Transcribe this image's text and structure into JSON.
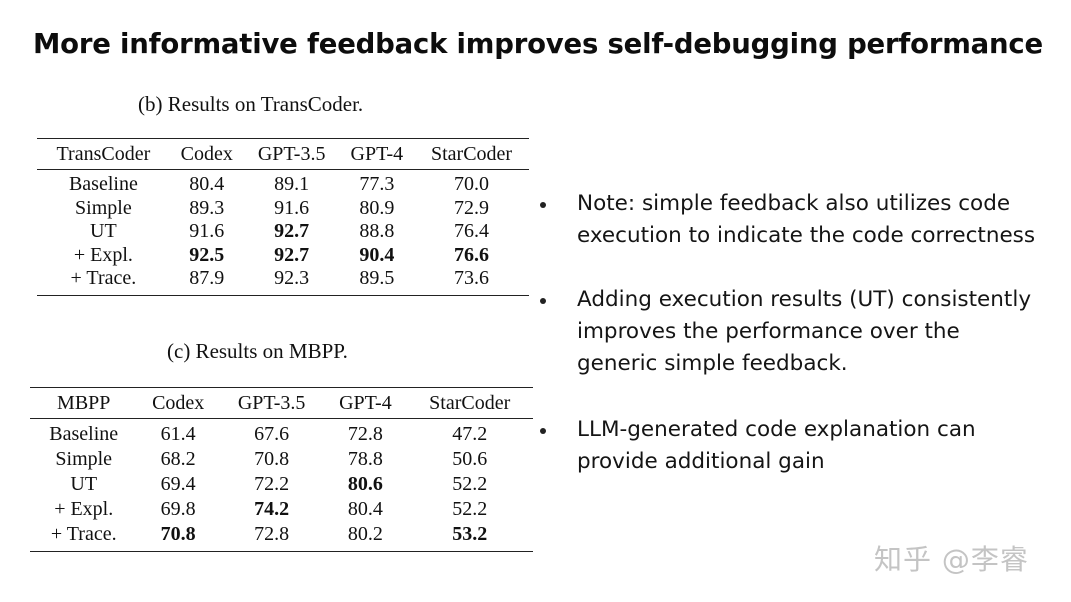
{
  "title": "More informative feedback improves self-debugging performance",
  "transcoder": {
    "caption": "(b) Results on TransCoder.",
    "headers": [
      "TransCoder",
      "Codex",
      "GPT-3.5",
      "GPT-4",
      "StarCoder"
    ],
    "rows": [
      {
        "label": "Baseline",
        "codex": "80.4",
        "gpt35": "89.1",
        "gpt4": "77.3",
        "starcoder": "70.0"
      },
      {
        "label": "Simple",
        "codex": "89.3",
        "gpt35": "91.6",
        "gpt4": "80.9",
        "starcoder": "72.9"
      },
      {
        "label": "UT",
        "codex": "91.6",
        "gpt35": "92.7",
        "gpt4": "88.8",
        "starcoder": "76.4"
      },
      {
        "label": "+ Expl.",
        "codex": "92.5",
        "gpt35": "92.7",
        "gpt4": "90.4",
        "starcoder": "76.6"
      },
      {
        "label": "+ Trace.",
        "codex": "87.9",
        "gpt35": "92.3",
        "gpt4": "89.5",
        "starcoder": "73.6"
      }
    ]
  },
  "mbpp": {
    "caption": "(c) Results on MBPP.",
    "headers": [
      "MBPP",
      "Codex",
      "GPT-3.5",
      "GPT-4",
      "StarCoder"
    ],
    "rows": [
      {
        "label": "Baseline",
        "codex": "61.4",
        "gpt35": "67.6",
        "gpt4": "72.8",
        "starcoder": "47.2"
      },
      {
        "label": "Simple",
        "codex": "68.2",
        "gpt35": "70.8",
        "gpt4": "78.8",
        "starcoder": "50.6"
      },
      {
        "label": "UT",
        "codex": "69.4",
        "gpt35": "72.2",
        "gpt4": "80.6",
        "starcoder": "52.2"
      },
      {
        "label": "+ Expl.",
        "codex": "69.8",
        "gpt35": "74.2",
        "gpt4": "80.4",
        "starcoder": "52.2"
      },
      {
        "label": "+ Trace.",
        "codex": "70.8",
        "gpt35": "72.8",
        "gpt4": "80.2",
        "starcoder": "53.2"
      }
    ]
  },
  "bullets": {
    "b1": {
      "line1": "Note: simple feedback also utilizes code",
      "line2": "execution to indicate the code correctness"
    },
    "b2": {
      "line1": "Adding execution results (UT) consistently",
      "line2": "improves the performance over the",
      "line3": "generic simple feedback."
    },
    "b3": {
      "line1": "LLM-generated code explanation can",
      "line2": "provide additional gain"
    }
  },
  "watermark": "知乎 @李睿"
}
